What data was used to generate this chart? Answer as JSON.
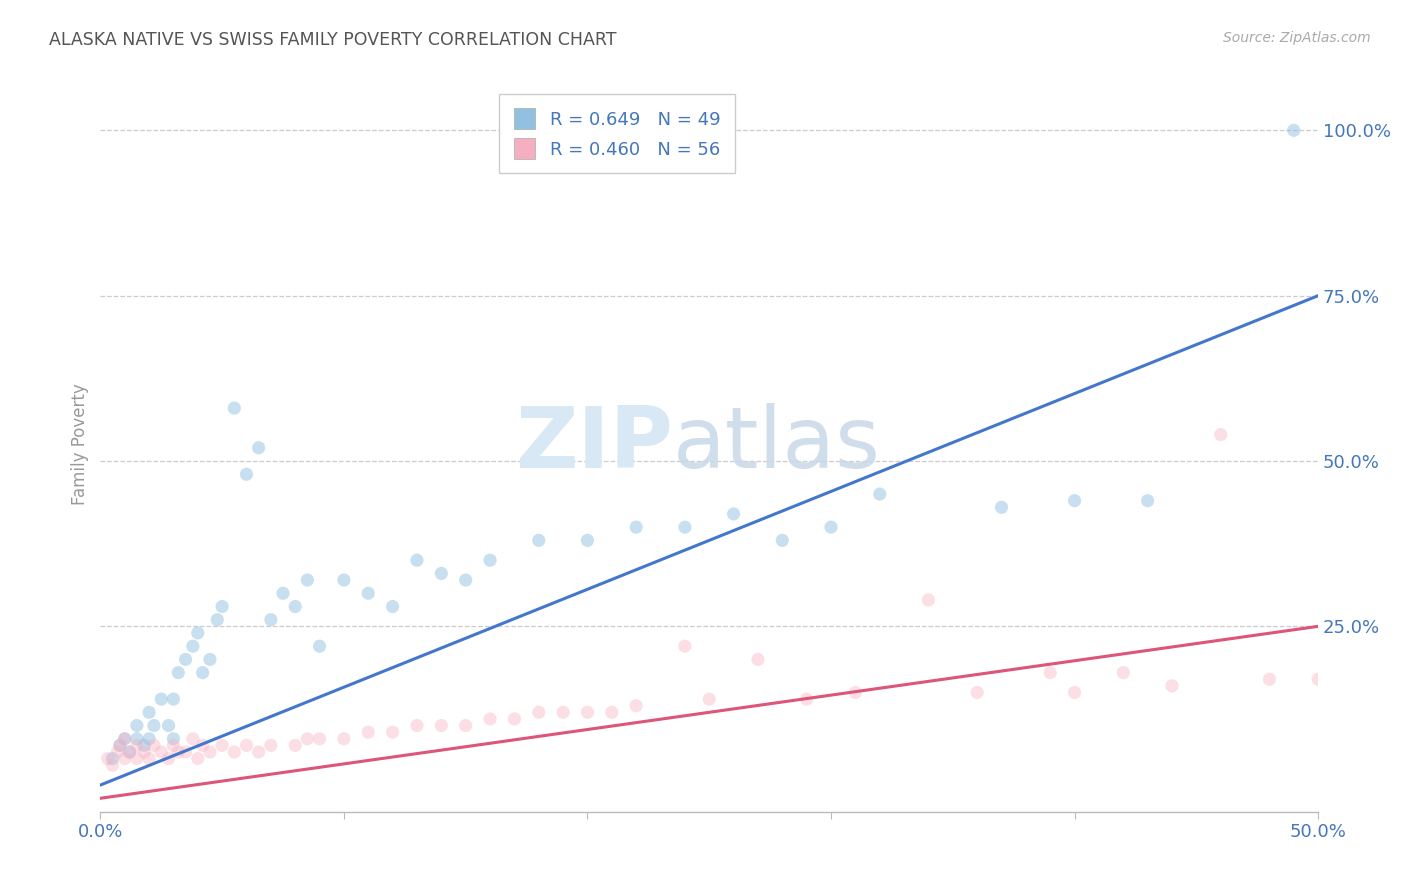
{
  "title": "ALASKA NATIVE VS SWISS FAMILY POVERTY CORRELATION CHART",
  "source": "Source: ZipAtlas.com",
  "ylabel": "Family Poverty",
  "ytick_labels": [
    "100.0%",
    "75.0%",
    "50.0%",
    "25.0%"
  ],
  "ytick_values": [
    1.0,
    0.75,
    0.5,
    0.25
  ],
  "xlim": [
    0.0,
    0.5
  ],
  "ylim": [
    -0.03,
    1.08
  ],
  "alaska_color": "#92c0e0",
  "swiss_color": "#f5afc0",
  "alaska_line_color": "#4477cc",
  "swiss_line_color": "#dd5577",
  "background_color": "#ffffff",
  "grid_color": "#cccccc",
  "title_color": "#555555",
  "axis_label_color": "#4477bb",
  "alaska_line_x": [
    0.0,
    0.5
  ],
  "alaska_line_y": [
    0.01,
    0.75
  ],
  "swiss_line_x": [
    0.0,
    0.5
  ],
  "swiss_line_y": [
    -0.01,
    0.25
  ],
  "alaska_scatter_x": [
    0.005,
    0.008,
    0.01,
    0.012,
    0.015,
    0.015,
    0.018,
    0.02,
    0.02,
    0.022,
    0.025,
    0.028,
    0.03,
    0.03,
    0.032,
    0.035,
    0.038,
    0.04,
    0.042,
    0.045,
    0.048,
    0.05,
    0.055,
    0.06,
    0.065,
    0.07,
    0.075,
    0.08,
    0.085,
    0.09,
    0.1,
    0.11,
    0.12,
    0.13,
    0.14,
    0.15,
    0.16,
    0.18,
    0.2,
    0.22,
    0.24,
    0.26,
    0.28,
    0.3,
    0.32,
    0.37,
    0.4,
    0.43,
    0.49
  ],
  "alaska_scatter_y": [
    0.05,
    0.07,
    0.08,
    0.06,
    0.08,
    0.1,
    0.07,
    0.08,
    0.12,
    0.1,
    0.14,
    0.1,
    0.08,
    0.14,
    0.18,
    0.2,
    0.22,
    0.24,
    0.18,
    0.2,
    0.26,
    0.28,
    0.58,
    0.48,
    0.52,
    0.26,
    0.3,
    0.28,
    0.32,
    0.22,
    0.32,
    0.3,
    0.28,
    0.35,
    0.33,
    0.32,
    0.35,
    0.38,
    0.38,
    0.4,
    0.4,
    0.42,
    0.38,
    0.4,
    0.45,
    0.43,
    0.44,
    0.44,
    1.0
  ],
  "swiss_scatter_x": [
    0.003,
    0.005,
    0.007,
    0.008,
    0.01,
    0.01,
    0.012,
    0.015,
    0.015,
    0.018,
    0.02,
    0.022,
    0.025,
    0.028,
    0.03,
    0.032,
    0.035,
    0.038,
    0.04,
    0.042,
    0.045,
    0.05,
    0.055,
    0.06,
    0.065,
    0.07,
    0.08,
    0.085,
    0.09,
    0.1,
    0.11,
    0.12,
    0.13,
    0.14,
    0.15,
    0.16,
    0.17,
    0.18,
    0.19,
    0.2,
    0.21,
    0.22,
    0.24,
    0.25,
    0.27,
    0.29,
    0.31,
    0.34,
    0.36,
    0.39,
    0.4,
    0.42,
    0.44,
    0.46,
    0.48,
    0.5
  ],
  "swiss_scatter_y": [
    0.05,
    0.04,
    0.06,
    0.07,
    0.05,
    0.08,
    0.06,
    0.05,
    0.07,
    0.06,
    0.05,
    0.07,
    0.06,
    0.05,
    0.07,
    0.06,
    0.06,
    0.08,
    0.05,
    0.07,
    0.06,
    0.07,
    0.06,
    0.07,
    0.06,
    0.07,
    0.07,
    0.08,
    0.08,
    0.08,
    0.09,
    0.09,
    0.1,
    0.1,
    0.1,
    0.11,
    0.11,
    0.12,
    0.12,
    0.12,
    0.12,
    0.13,
    0.22,
    0.14,
    0.2,
    0.14,
    0.15,
    0.29,
    0.15,
    0.18,
    0.15,
    0.18,
    0.16,
    0.54,
    0.17,
    0.17
  ],
  "legend_label_alaska": "R = 0.649   N = 49",
  "legend_label_swiss": "R = 0.460   N = 56",
  "marker_size": 90,
  "marker_alpha_alaska": 0.5,
  "marker_alpha_swiss": 0.4,
  "line_width": 2.2
}
